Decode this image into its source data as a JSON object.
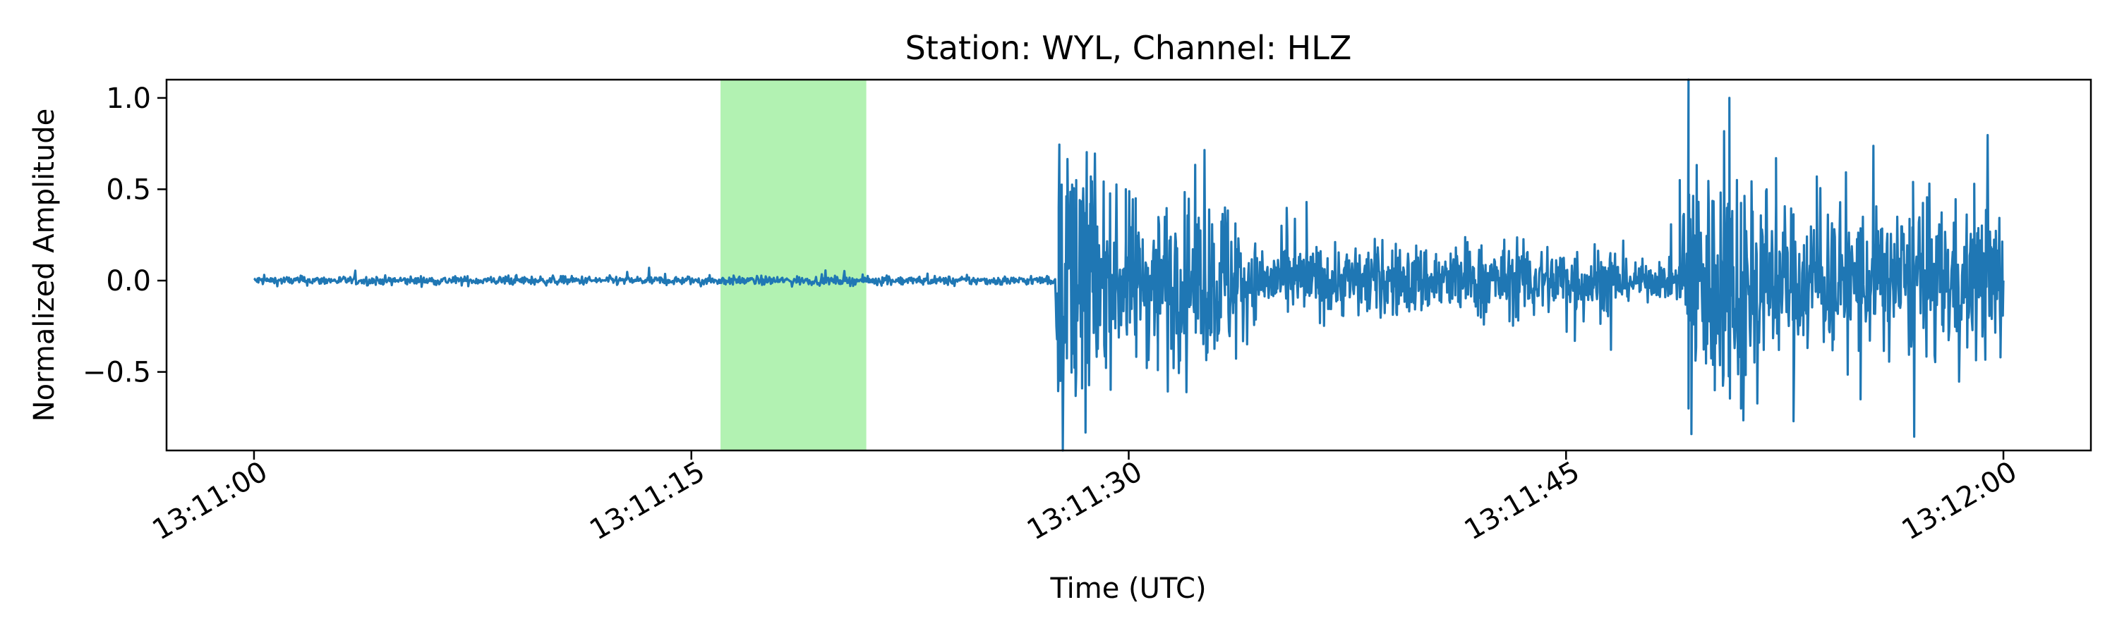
{
  "chart_data": {
    "type": "line",
    "title": "Station: WYL, Channel: HLZ",
    "xlabel": "Time (UTC)",
    "ylabel": "Normalized Amplitude",
    "x_unit": "time of day (UTC)",
    "xlim": [
      "13:10:57",
      "13:12:03"
    ],
    "ylim": [
      -0.93,
      1.1
    ],
    "x_ticks": [
      "13:11:00",
      "13:11:15",
      "13:11:30",
      "13:11:45",
      "13:12:00"
    ],
    "y_ticks": [
      -0.5,
      0.0,
      0.5,
      1.0
    ],
    "y_tick_labels": [
      "−0.5",
      "0.0",
      "0.5",
      "1.0"
    ],
    "grid": false,
    "legend": "none",
    "highlight_span": {
      "x_start": "13:11:16",
      "x_end": "13:11:21",
      "color": "#b2f2b2"
    },
    "series": [
      {
        "color": "#1f77b4",
        "segments": [
          {
            "x_start": "13:11:00.0",
            "x_end": "13:11:27.5",
            "amplitude_env": 0.012,
            "samples": 1100
          },
          {
            "x_start": "13:11:27.5",
            "x_end": "13:11:29.0",
            "amplitude_env": 0.35,
            "samples": 75
          },
          {
            "x_start": "13:11:29.0",
            "x_end": "13:11:34.0",
            "amplitude_env": 0.22,
            "samples": 250
          },
          {
            "x_start": "13:11:34.0",
            "x_end": "13:11:47.0",
            "amplitude_env": 0.1,
            "samples": 650
          },
          {
            "x_start": "13:11:47.0",
            "x_end": "13:11:49.0",
            "amplitude_env": 0.05,
            "samples": 100
          },
          {
            "x_start": "13:11:49.0",
            "x_end": "13:11:52.0",
            "amplitude_env": 0.32,
            "samples": 150
          },
          {
            "x_start": "13:11:52.0",
            "x_end": "13:12:00.0",
            "amplitude_env": 0.2,
            "samples": 400
          }
        ],
        "peaks": [
          {
            "x": "13:11:27.6",
            "y": 0.4
          },
          {
            "x": "13:11:28.1",
            "y": -0.4
          },
          {
            "x": "13:11:28.2",
            "y": 0.55
          },
          {
            "x": "13:11:28.4",
            "y": -0.59
          },
          {
            "x": "13:11:28.7",
            "y": 0.57
          },
          {
            "x": "13:11:29.9",
            "y": 0.5
          },
          {
            "x": "13:11:31.0",
            "y": -0.49
          },
          {
            "x": "13:11:33.3",
            "y": 0.4
          },
          {
            "x": "13:11:36.1",
            "y": 0.43
          },
          {
            "x": "13:11:45.3",
            "y": -0.33
          },
          {
            "x": "13:11:48.9",
            "y": 0.55
          },
          {
            "x": "13:11:49.2",
            "y": -0.7
          },
          {
            "x": "13:11:49.3",
            "y": -0.84
          },
          {
            "x": "13:11:50.1",
            "y": -0.6
          },
          {
            "x": "13:11:50.6",
            "y": 1.0
          },
          {
            "x": "13:11:51.0",
            "y": -0.7
          },
          {
            "x": "13:11:52.2",
            "y": 0.67
          },
          {
            "x": "13:11:52.8",
            "y": -0.77
          },
          {
            "x": "13:11:53.6",
            "y": 0.57
          },
          {
            "x": "13:11:55.1",
            "y": -0.65
          },
          {
            "x": "13:11:56.9",
            "y": 0.54
          },
          {
            "x": "13:11:59.0",
            "y": 0.53
          },
          {
            "x": "13:11:59.9",
            "y": -0.42
          }
        ]
      }
    ]
  }
}
